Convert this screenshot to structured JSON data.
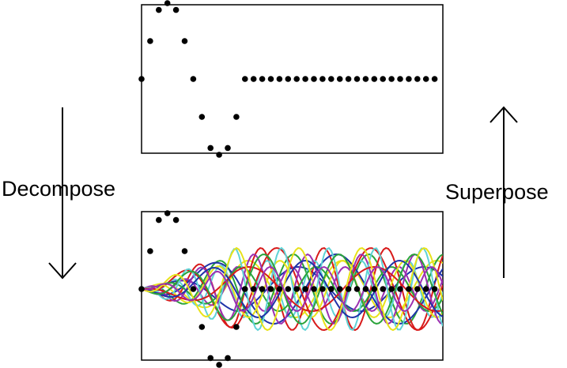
{
  "labels": {
    "left": "Decompose",
    "right": "Superpose"
  },
  "signal": {
    "samples": [
      0,
      0.5,
      0.91,
      1,
      0.91,
      0.5,
      0,
      -0.5,
      -0.91,
      -1,
      -0.91,
      -0.5,
      0,
      0,
      0,
      0,
      0,
      0,
      0,
      0,
      0,
      0,
      0,
      0,
      0,
      0,
      0,
      0,
      0,
      0,
      0,
      0,
      0,
      0,
      0
    ],
    "point_color": "#000000"
  },
  "components": {
    "count": 17,
    "colors": [
      "#1f32a8",
      "#e8e21a",
      "#2aa33a",
      "#d81a1a",
      "#9b2fb0",
      "#5fd3d6",
      "#1f32a8",
      "#d81a1a",
      "#2aa33a",
      "#e8e21a",
      "#9b2fb0",
      "#5fd3d6",
      "#d81a1a",
      "#1f32a8",
      "#2aa33a",
      "#e8e21a",
      "#9b2fb0"
    ]
  },
  "arrow_color": "#000000",
  "frame_color": "#000000"
}
